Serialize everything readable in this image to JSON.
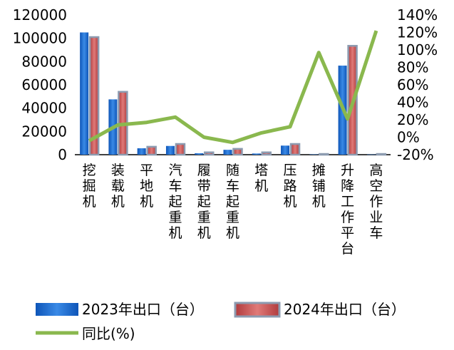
{
  "chart_data": {
    "type": "bar",
    "categories": [
      "挖掘机",
      "装载机",
      "平地机",
      "汽车起重机",
      "履带起重机",
      "随车起重机",
      "塔机",
      "压路机",
      "摊铺机",
      "升降工作平台",
      "高空作业车"
    ],
    "series": [
      {
        "name": "2023年出口（台）",
        "type": "bar",
        "axis": "left",
        "color": "#1f6fd1",
        "values": [
          105000,
          47500,
          5500,
          7500,
          1200,
          4200,
          1000,
          7800,
          300,
          76500,
          200
        ]
      },
      {
        "name": "2024年出口（台）",
        "type": "bar",
        "axis": "left",
        "color": "#c0504d",
        "values": [
          101000,
          54000,
          6800,
          9200,
          2000,
          5000,
          2000,
          9200,
          600,
          93500,
          600
        ]
      },
      {
        "name": "同比(%)",
        "type": "line",
        "axis": "right",
        "color": "#8ab84e",
        "values": [
          -4,
          14,
          17,
          23,
          0,
          -6,
          5,
          12,
          97,
          21,
          122
        ]
      }
    ],
    "y_left": {
      "min": 0,
      "max": 120000,
      "ticks": [
        "0",
        "20000",
        "40000",
        "60000",
        "80000",
        "100000",
        "120000"
      ]
    },
    "y_right": {
      "min": -20,
      "max": 140,
      "ticks": [
        "-20%",
        "0%",
        "20%",
        "40%",
        "60%",
        "80%",
        "100%",
        "120%",
        "140%"
      ]
    },
    "legend_position": "bottom",
    "title": "",
    "xlabel": "",
    "ylabel": ""
  }
}
